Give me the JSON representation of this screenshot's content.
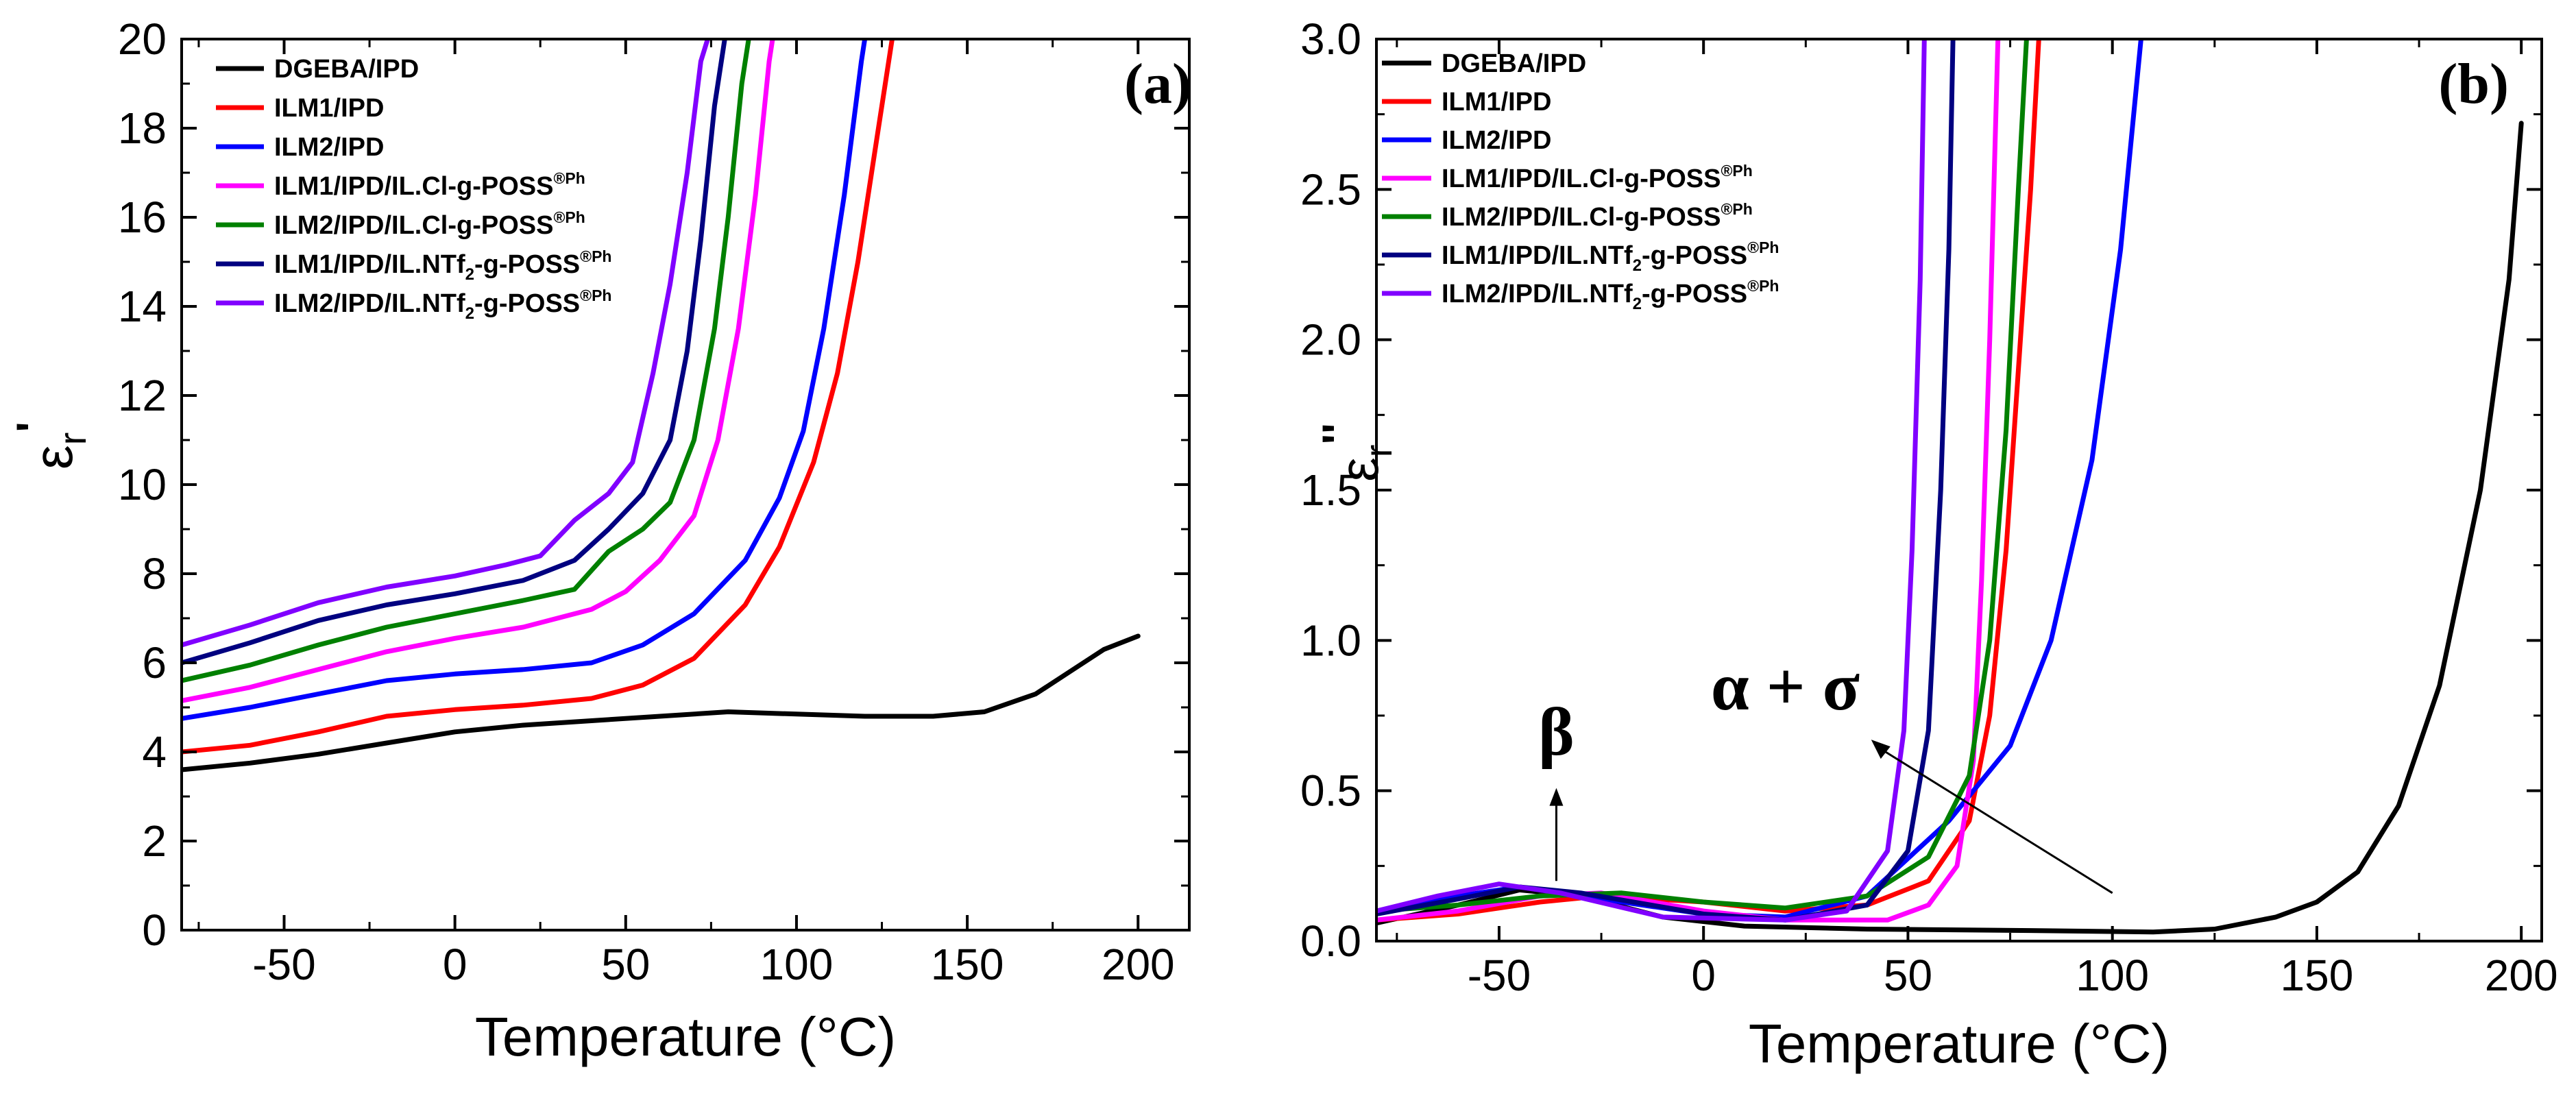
{
  "chart_data": [
    {
      "type": "line",
      "panel_label": "(a)",
      "xlabel": "Temperature (°C)",
      "ylabel": "ε",
      "ylabel_sub": "r",
      "ylabel_mark": "'",
      "xlim": [
        -80,
        215
      ],
      "ylim": [
        0,
        20
      ],
      "xticks": [
        -50,
        0,
        50,
        100,
        150,
        200
      ],
      "yticks": [
        0,
        2,
        4,
        6,
        8,
        10,
        12,
        14,
        16,
        18,
        20
      ],
      "legend_position": "top-left",
      "series": [
        {
          "name": "DGEBA/IPD",
          "color": "#000000",
          "points": [
            [
              -80,
              3.6
            ],
            [
              -60,
              3.75
            ],
            [
              -40,
              3.95
            ],
            [
              -20,
              4.2
            ],
            [
              0,
              4.45
            ],
            [
              20,
              4.6
            ],
            [
              40,
              4.7
            ],
            [
              60,
              4.8
            ],
            [
              80,
              4.9
            ],
            [
              100,
              4.85
            ],
            [
              120,
              4.8
            ],
            [
              140,
              4.8
            ],
            [
              155,
              4.9
            ],
            [
              170,
              5.3
            ],
            [
              180,
              5.8
            ],
            [
              190,
              6.3
            ],
            [
              200,
              6.6
            ]
          ]
        },
        {
          "name": "ILM1/IPD",
          "color": "#ff0000",
          "points": [
            [
              -80,
              4.0
            ],
            [
              -60,
              4.15
            ],
            [
              -40,
              4.45
            ],
            [
              -20,
              4.8
            ],
            [
              0,
              4.95
            ],
            [
              20,
              5.05
            ],
            [
              40,
              5.2
            ],
            [
              55,
              5.5
            ],
            [
              70,
              6.1
            ],
            [
              85,
              7.3
            ],
            [
              95,
              8.6
            ],
            [
              105,
              10.5
            ],
            [
              112,
              12.5
            ],
            [
              118,
              15.0
            ],
            [
              124,
              18.0
            ],
            [
              128,
              20.0
            ]
          ]
        },
        {
          "name": "ILM2/IPD",
          "color": "#0000ff",
          "points": [
            [
              -80,
              4.75
            ],
            [
              -60,
              5.0
            ],
            [
              -40,
              5.3
            ],
            [
              -20,
              5.6
            ],
            [
              0,
              5.75
            ],
            [
              20,
              5.85
            ],
            [
              40,
              6.0
            ],
            [
              55,
              6.4
            ],
            [
              70,
              7.1
            ],
            [
              85,
              8.3
            ],
            [
              95,
              9.7
            ],
            [
              102,
              11.2
            ],
            [
              108,
              13.5
            ],
            [
              114,
              16.5
            ],
            [
              119,
              19.5
            ],
            [
              120,
              20.0
            ]
          ]
        },
        {
          "name": "ILM1/IPD/IL.Cl-g-POSS",
          "name_sup": "®Ph",
          "color": "#ff00ff",
          "points": [
            [
              -80,
              5.15
            ],
            [
              -60,
              5.45
            ],
            [
              -40,
              5.85
            ],
            [
              -20,
              6.25
            ],
            [
              0,
              6.55
            ],
            [
              20,
              6.8
            ],
            [
              40,
              7.2
            ],
            [
              50,
              7.6
            ],
            [
              60,
              8.3
            ],
            [
              70,
              9.3
            ],
            [
              77,
              11.0
            ],
            [
              83,
              13.5
            ],
            [
              88,
              16.5
            ],
            [
              92,
              19.5
            ],
            [
              93,
              20.0
            ]
          ]
        },
        {
          "name": "ILM2/IPD/IL.Cl-g-POSS",
          "name_sup": "®Ph",
          "color": "#008000",
          "points": [
            [
              -80,
              5.6
            ],
            [
              -60,
              5.95
            ],
            [
              -40,
              6.4
            ],
            [
              -20,
              6.8
            ],
            [
              0,
              7.1
            ],
            [
              20,
              7.4
            ],
            [
              35,
              7.65
            ],
            [
              45,
              8.5
            ],
            [
              55,
              9.0
            ],
            [
              63,
              9.6
            ],
            [
              70,
              11.0
            ],
            [
              76,
              13.5
            ],
            [
              80,
              16.0
            ],
            [
              84,
              19.0
            ],
            [
              86,
              20.0
            ]
          ]
        },
        {
          "name": "ILM1/IPD/IL.NTf2-g-POSS",
          "name_sub": "2",
          "name_sup": "®Ph",
          "color": "#000080",
          "points": [
            [
              -80,
              6.0
            ],
            [
              -60,
              6.45
            ],
            [
              -40,
              6.95
            ],
            [
              -20,
              7.3
            ],
            [
              0,
              7.55
            ],
            [
              20,
              7.85
            ],
            [
              35,
              8.3
            ],
            [
              45,
              9.0
            ],
            [
              55,
              9.8
            ],
            [
              63,
              11.0
            ],
            [
              68,
              13.0
            ],
            [
              72,
              15.5
            ],
            [
              76,
              18.5
            ],
            [
              79,
              20.0
            ]
          ]
        },
        {
          "name": "ILM2/IPD/IL.NTf2-g-POSS",
          "name_sub": "2",
          "name_sup": "®Ph",
          "color": "#8000ff",
          "points": [
            [
              -80,
              6.4
            ],
            [
              -60,
              6.85
            ],
            [
              -40,
              7.35
            ],
            [
              -20,
              7.7
            ],
            [
              0,
              7.95
            ],
            [
              15,
              8.2
            ],
            [
              25,
              8.4
            ],
            [
              35,
              9.2
            ],
            [
              45,
              9.8
            ],
            [
              52,
              10.5
            ],
            [
              58,
              12.5
            ],
            [
              63,
              14.5
            ],
            [
              68,
              17.0
            ],
            [
              72,
              19.5
            ],
            [
              74,
              20.0
            ]
          ]
        }
      ]
    },
    {
      "type": "line",
      "panel_label": "(b)",
      "xlabel": "Temperature (°C)",
      "ylabel": "ε",
      "ylabel_sub": "r",
      "ylabel_mark": "''",
      "xlim": [
        -80,
        205
      ],
      "ylim": [
        0,
        3.0
      ],
      "xticks": [
        -50,
        0,
        50,
        100,
        150,
        200
      ],
      "yticks": [
        0.0,
        0.5,
        1.0,
        1.5,
        2.0,
        2.5,
        3.0
      ],
      "legend_position": "top-left",
      "annotations": [
        {
          "text": "β",
          "x": -36,
          "y": 0.62
        },
        {
          "text": "α + σ",
          "x": 20,
          "y": 0.77
        }
      ],
      "series": [
        {
          "name": "DGEBA/IPD",
          "color": "#000000",
          "points": [
            [
              -80,
              0.06
            ],
            [
              -60,
              0.12
            ],
            [
              -45,
              0.17
            ],
            [
              -30,
              0.15
            ],
            [
              -10,
              0.08
            ],
            [
              10,
              0.05
            ],
            [
              40,
              0.04
            ],
            [
              80,
              0.035
            ],
            [
              110,
              0.03
            ],
            [
              125,
              0.04
            ],
            [
              140,
              0.08
            ],
            [
              150,
              0.13
            ],
            [
              160,
              0.23
            ],
            [
              170,
              0.45
            ],
            [
              180,
              0.85
            ],
            [
              190,
              1.5
            ],
            [
              197,
              2.2
            ],
            [
              200,
              2.72
            ]
          ]
        },
        {
          "name": "ILM1/IPD",
          "color": "#ff0000",
          "points": [
            [
              -80,
              0.07
            ],
            [
              -60,
              0.09
            ],
            [
              -40,
              0.13
            ],
            [
              -25,
              0.15
            ],
            [
              0,
              0.13
            ],
            [
              20,
              0.1
            ],
            [
              40,
              0.12
            ],
            [
              55,
              0.2
            ],
            [
              65,
              0.4
            ],
            [
              70,
              0.75
            ],
            [
              74,
              1.3
            ],
            [
              77,
              1.9
            ],
            [
              80,
              2.5
            ],
            [
              82,
              3.0
            ]
          ]
        },
        {
          "name": "ILM2/IPD",
          "color": "#0000ff",
          "points": [
            [
              -80,
              0.1
            ],
            [
              -60,
              0.15
            ],
            [
              -45,
              0.18
            ],
            [
              -30,
              0.15
            ],
            [
              0,
              0.09
            ],
            [
              20,
              0.08
            ],
            [
              40,
              0.15
            ],
            [
              60,
              0.4
            ],
            [
              75,
              0.65
            ],
            [
              85,
              1.0
            ],
            [
              95,
              1.6
            ],
            [
              102,
              2.3
            ],
            [
              107,
              3.0
            ]
          ]
        },
        {
          "name": "ILM1/IPD/IL.Cl-g-POSS",
          "name_sup": "®Ph",
          "color": "#ff00ff",
          "points": [
            [
              -80,
              0.07
            ],
            [
              -60,
              0.1
            ],
            [
              -40,
              0.15
            ],
            [
              -25,
              0.16
            ],
            [
              0,
              0.1
            ],
            [
              20,
              0.07
            ],
            [
              45,
              0.07
            ],
            [
              55,
              0.12
            ],
            [
              62,
              0.25
            ],
            [
              66,
              0.6
            ],
            [
              68,
              1.2
            ],
            [
              70,
              2.0
            ],
            [
              72,
              3.0
            ]
          ]
        },
        {
          "name": "ILM2/IPD/IL.Cl-g-POSS",
          "name_sup": "®Ph",
          "color": "#008000",
          "points": [
            [
              -80,
              0.1
            ],
            [
              -60,
              0.12
            ],
            [
              -40,
              0.15
            ],
            [
              -20,
              0.16
            ],
            [
              0,
              0.13
            ],
            [
              20,
              0.11
            ],
            [
              40,
              0.15
            ],
            [
              55,
              0.28
            ],
            [
              65,
              0.55
            ],
            [
              70,
              1.0
            ],
            [
              74,
              1.7
            ],
            [
              77,
              2.5
            ],
            [
              79,
              3.0
            ]
          ]
        },
        {
          "name": "ILM1/IPD/IL.NTf2-g-POSS",
          "name_sub": "2",
          "name_sup": "®Ph",
          "color": "#000080",
          "points": [
            [
              -80,
              0.09
            ],
            [
              -60,
              0.14
            ],
            [
              -45,
              0.18
            ],
            [
              -30,
              0.16
            ],
            [
              0,
              0.09
            ],
            [
              20,
              0.07
            ],
            [
              40,
              0.12
            ],
            [
              50,
              0.3
            ],
            [
              55,
              0.7
            ],
            [
              58,
              1.5
            ],
            [
              60,
              2.3
            ],
            [
              61,
              3.0
            ]
          ]
        },
        {
          "name": "ILM2/IPD/IL.NTf2-g-POSS",
          "name_sub": "2",
          "name_sup": "®Ph",
          "color": "#8000ff",
          "points": [
            [
              -80,
              0.1
            ],
            [
              -65,
              0.15
            ],
            [
              -50,
              0.19
            ],
            [
              -35,
              0.16
            ],
            [
              -10,
              0.08
            ],
            [
              20,
              0.07
            ],
            [
              35,
              0.1
            ],
            [
              45,
              0.3
            ],
            [
              49,
              0.7
            ],
            [
              51,
              1.3
            ],
            [
              53,
              2.2
            ],
            [
              54,
              3.0
            ]
          ]
        }
      ]
    }
  ]
}
